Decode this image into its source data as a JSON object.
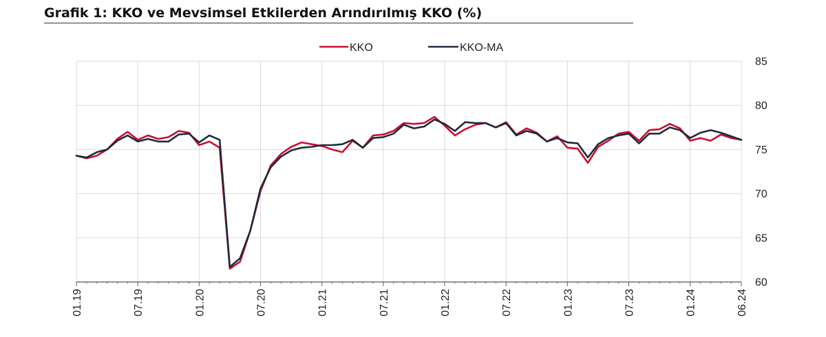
{
  "title": "Grafik 1: KKO ve Mevsimsel Etkilerden Arındırılmış KKO (%)",
  "chart_data": {
    "type": "line",
    "title": "Grafik 1: KKO ve Mevsimsel Etkilerden Arındırılmış KKO (%)",
    "ylim": [
      60,
      85
    ],
    "y_ticks": [
      "60",
      "65",
      "70",
      "75",
      "80",
      "85"
    ],
    "x_tick_labels": [
      "01.19",
      "07.19",
      "01.20",
      "07.20",
      "01.21",
      "07.21",
      "01.22",
      "07.22",
      "01.23",
      "07.23",
      "01.24",
      "06.24"
    ],
    "x_tick_positions": [
      0,
      6,
      12,
      18,
      24,
      30,
      36,
      42,
      48,
      54,
      60,
      65
    ],
    "grid": true,
    "legend_position": "top",
    "y_axis_side": "right",
    "series": [
      {
        "name": "KKO",
        "color": "#c8102e",
        "values": [
          74.3,
          74.0,
          74.3,
          75.0,
          76.2,
          77.0,
          76.1,
          76.6,
          76.2,
          76.4,
          77.1,
          76.9,
          75.5,
          75.9,
          75.2,
          61.5,
          62.3,
          65.8,
          70.3,
          73.2,
          74.5,
          75.3,
          75.8,
          75.6,
          75.4,
          75.0,
          74.7,
          76.0,
          75.2,
          76.6,
          76.7,
          77.1,
          78.0,
          77.9,
          78.0,
          78.7,
          77.7,
          76.6,
          77.3,
          77.8,
          78.0,
          77.5,
          78.1,
          76.7,
          77.4,
          76.9,
          75.9,
          76.5,
          75.2,
          75.1,
          73.5,
          75.3,
          76.0,
          76.8,
          77.0,
          76.0,
          77.2,
          77.3,
          77.9,
          77.4,
          76.0,
          76.3,
          76.0,
          76.7,
          76.3,
          76.1
        ]
      },
      {
        "name": "KKO-MA",
        "color": "#1f2a3c",
        "values": [
          74.3,
          74.1,
          74.7,
          75.0,
          76.0,
          76.6,
          75.9,
          76.2,
          75.9,
          75.9,
          76.7,
          76.8,
          75.8,
          76.6,
          76.1,
          61.7,
          62.7,
          65.8,
          70.6,
          73.0,
          74.2,
          74.9,
          75.2,
          75.3,
          75.5,
          75.5,
          75.6,
          76.1,
          75.2,
          76.3,
          76.4,
          76.8,
          77.8,
          77.4,
          77.6,
          78.4,
          77.9,
          77.1,
          78.1,
          78.0,
          78.0,
          77.5,
          78.0,
          76.6,
          77.1,
          76.8,
          75.9,
          76.3,
          75.8,
          75.7,
          74.1,
          75.6,
          76.3,
          76.6,
          76.8,
          75.7,
          76.8,
          76.8,
          77.5,
          77.2,
          76.3,
          76.9,
          77.2,
          76.9,
          76.5,
          76.1
        ]
      }
    ]
  }
}
